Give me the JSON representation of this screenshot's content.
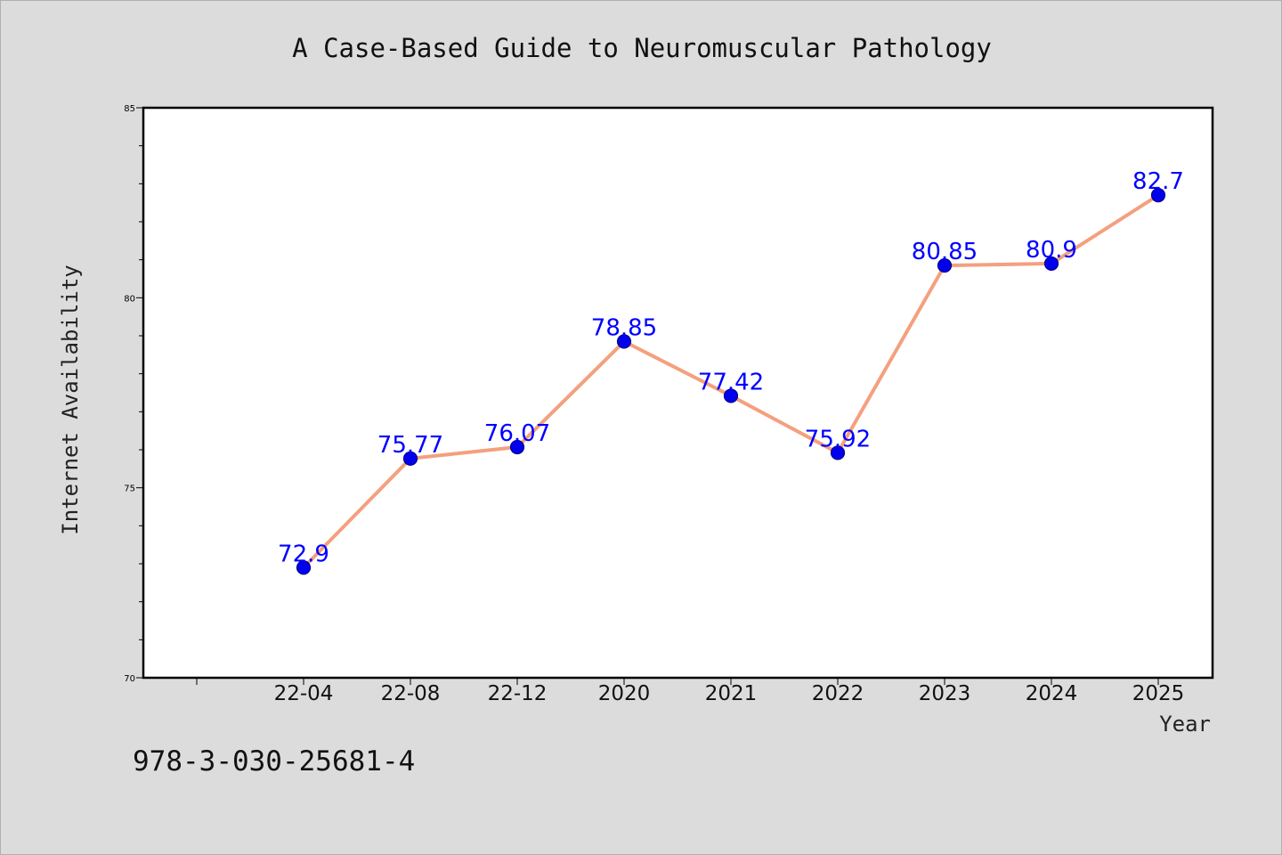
{
  "chart_data": {
    "type": "line",
    "title": "A Case-Based Guide to Neuromuscular Pathology",
    "xlabel": "Year",
    "ylabel": "Internet Availability",
    "categories": [
      "22-04",
      "22-08",
      "22-12",
      "2020",
      "2021",
      "2022",
      "2023",
      "2024",
      "2025"
    ],
    "series": [
      {
        "values": [
          72.9,
          75.77,
          76.07,
          78.85,
          77.42,
          75.92,
          80.85,
          80.9,
          82.7
        ],
        "labels": [
          "72.9",
          "75.77",
          "76.07",
          "78.85",
          "77.42",
          "75.92",
          "80.85",
          "80.9",
          "82.7"
        ]
      }
    ],
    "ylim": [
      70,
      85
    ],
    "yticks": [
      "70",
      "75",
      "80",
      "85"
    ],
    "grid": false,
    "legend": "none",
    "colors": {
      "line": "#f4a07e",
      "marker": "#0000ee",
      "marker_edge": "#00008b",
      "data_label": "#0000ff",
      "plot_background": "#ffffff",
      "figure_background": "#dcdcdc"
    }
  },
  "footer": {
    "isbn": "978-3-030-25681-4"
  }
}
